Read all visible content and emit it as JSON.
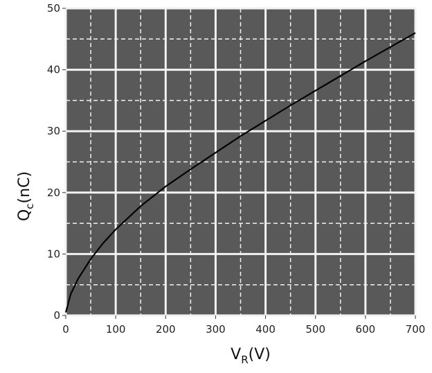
{
  "chart_data": {
    "type": "line",
    "xlabel": "V",
    "xlabel_sub": "R",
    "xlabel_unit": "(V)",
    "ylabel": "Q",
    "ylabel_sub": "c",
    "ylabel_unit": "(nC)",
    "xlim": [
      0,
      700
    ],
    "ylim": [
      0,
      50
    ],
    "x_ticks": [
      0,
      100,
      200,
      300,
      400,
      500,
      600,
      700
    ],
    "x_tick_labels": [
      "0",
      "100",
      "200",
      "300",
      "400",
      "500",
      "600",
      "700"
    ],
    "y_ticks": [
      0,
      10,
      20,
      30,
      40,
      50
    ],
    "y_tick_labels": [
      "0",
      "10",
      "20",
      "30",
      "40",
      "50"
    ],
    "grid": true,
    "colors": {
      "background": "#595959",
      "grid": "#f2f2f2",
      "line": "#000000"
    },
    "series": [
      {
        "x": [
          0,
          10,
          25,
          50,
          75,
          100,
          150,
          200,
          250,
          300,
          350,
          400,
          450,
          500,
          550,
          600,
          650,
          700
        ],
        "values": [
          0.5,
          3.5,
          6.0,
          9.2,
          11.8,
          14.0,
          17.8,
          21.0,
          23.8,
          26.5,
          29.2,
          31.7,
          34.2,
          36.6,
          39.0,
          41.4,
          43.7,
          46.0
        ]
      }
    ]
  }
}
